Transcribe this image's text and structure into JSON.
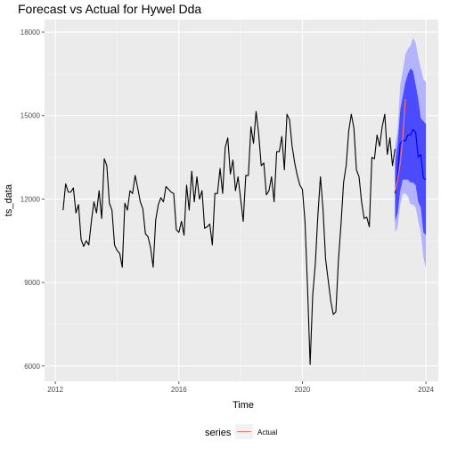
{
  "chart_data": {
    "type": "line",
    "title": "Forecast vs Actual for Hywel Dda",
    "xlabel": "Time",
    "ylabel": "ts_data",
    "xlim": [
      2011.65,
      2024.4
    ],
    "ylim": [
      5450,
      18450
    ],
    "x_ticks": [
      2012,
      2016,
      2020,
      2024
    ],
    "x_tick_labels": [
      "2012",
      "2016",
      "2020",
      "2024"
    ],
    "y_ticks": [
      6000,
      9000,
      12000,
      15000,
      18000
    ],
    "y_tick_labels": [
      "6000",
      "9000",
      "12000",
      "15000",
      "18000"
    ],
    "grid": true,
    "legend": {
      "title": "series",
      "position": "bottom",
      "entries": [
        {
          "name": "Actual",
          "color": "#F8766D"
        }
      ]
    },
    "series": [
      {
        "role": "history",
        "color": "#000000",
        "x_start": 2012.25,
        "step": 0.08333,
        "values": [
          11600,
          12550,
          12250,
          12250,
          12400,
          11500,
          11800,
          10550,
          10300,
          10500,
          10350,
          11200,
          11900,
          11500,
          12300,
          11300,
          13450,
          13200,
          11850,
          11600,
          10350,
          10150,
          10050,
          9550,
          11850,
          11600,
          12300,
          12200,
          12850,
          12400,
          11900,
          11650,
          10750,
          10650,
          10250,
          9550,
          11250,
          11800,
          12050,
          11900,
          12450,
          12350,
          12250,
          12200,
          10900,
          10800,
          11200,
          10700,
          12500,
          11600,
          13000,
          11900,
          12800,
          12000,
          12300,
          10950,
          11000,
          11100,
          10350,
          12200,
          12200,
          13100,
          12200,
          13850,
          14200,
          12900,
          13400,
          12300,
          12800,
          12000,
          11200,
          12850,
          12850,
          14600,
          14000,
          15150,
          14350,
          13200,
          13300,
          12150,
          12300,
          12800,
          11900,
          13700,
          13700,
          14250,
          13050,
          15050,
          14850,
          13900,
          13300,
          12850,
          12500,
          12350,
          11200,
          8800,
          6050,
          8550,
          9650,
          11400,
          12800,
          11650,
          9850,
          9100,
          8350,
          7850,
          7950,
          9800,
          11100,
          12600,
          13200,
          14450,
          15050,
          14550,
          13050,
          12800,
          11900,
          11300,
          11350,
          11000,
          13500,
          13450,
          14300,
          13900,
          14600,
          15050,
          13600,
          14200,
          13200,
          13800
        ]
      },
      {
        "role": "forecast-mean",
        "color": "#0000ff",
        "x_start": 2023.0,
        "step": 0.08333,
        "values": [
          12200,
          12900,
          14000,
          14100,
          14100,
          14300,
          14300,
          14500,
          14400,
          13500,
          13600,
          12750,
          12700
        ]
      },
      {
        "role": "forecast-80",
        "color": "#4b4bff",
        "x_start": 2023.0,
        "step": 0.08333,
        "lower": [
          11200,
          11500,
          12300,
          12700,
          12700,
          12700,
          12600,
          12600,
          12500,
          11900,
          11700,
          10800,
          10700
        ],
        "upper": [
          13300,
          14000,
          15200,
          15700,
          16200,
          16500,
          16700,
          16600,
          16100,
          15600,
          14900,
          14800,
          14700
        ]
      },
      {
        "role": "forecast-95",
        "color": "#b3b3ff",
        "x_start": 2023.0,
        "step": 0.08333,
        "lower": [
          10800,
          11000,
          11800,
          12200,
          12200,
          12100,
          11800,
          11800,
          11700,
          11200,
          10800,
          9900,
          9500
        ],
        "upper": [
          13900,
          14500,
          16100,
          16600,
          17200,
          17400,
          17500,
          17800,
          17600,
          17100,
          16700,
          16300,
          16200
        ]
      },
      {
        "name": "Actual",
        "role": "actual",
        "color": "#F8766D",
        "x_start": 2023.0,
        "step": 0.08333,
        "values": [
          12300,
          12700,
          13300,
          14200,
          15600
        ]
      }
    ]
  }
}
